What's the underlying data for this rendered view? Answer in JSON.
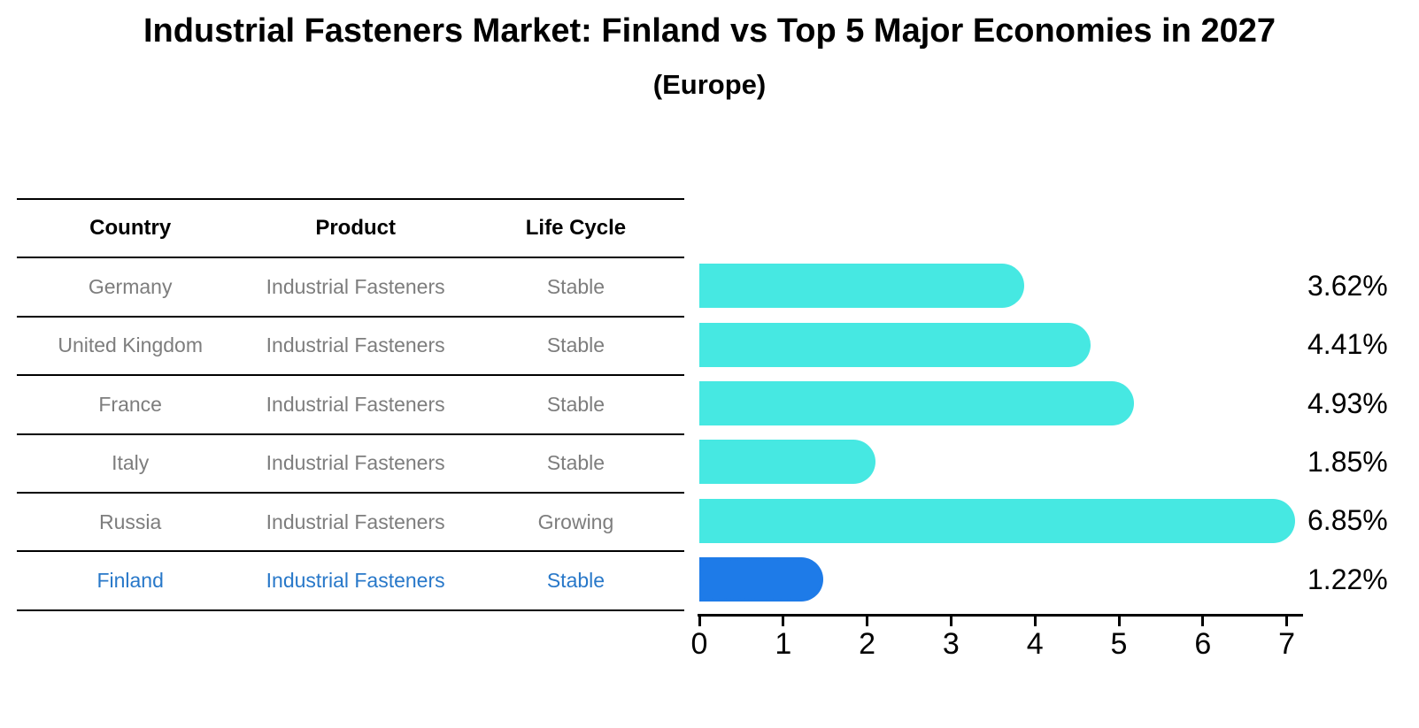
{
  "title": "Industrial Fasteners Market: Finland vs Top 5 Major Economies in 2027",
  "subtitle": "(Europe)",
  "table": {
    "headers": [
      "Country",
      "Product",
      "Life Cycle"
    ],
    "rows": [
      {
        "country": "Germany",
        "product": "Industrial Fasteners",
        "life_cycle": "Stable",
        "highlight": false
      },
      {
        "country": "United Kingdom",
        "product": "Industrial Fasteners",
        "life_cycle": "Stable",
        "highlight": false
      },
      {
        "country": "France",
        "product": "Industrial Fasteners",
        "life_cycle": "Stable",
        "highlight": false
      },
      {
        "country": "Italy",
        "product": "Industrial Fasteners",
        "life_cycle": "Stable",
        "highlight": false
      },
      {
        "country": "Russia",
        "product": "Industrial Fasteners",
        "life_cycle": "Growing",
        "highlight": false
      },
      {
        "country": "Finland",
        "product": "Industrial Fasteners",
        "life_cycle": "Stable",
        "highlight": true
      }
    ]
  },
  "chart_data": {
    "type": "bar",
    "orientation": "horizontal",
    "categories": [
      "Germany",
      "United Kingdom",
      "France",
      "Italy",
      "Russia",
      "Finland"
    ],
    "values": [
      3.62,
      4.41,
      4.93,
      1.85,
      6.85,
      1.22
    ],
    "value_labels": [
      "3.62%",
      "4.41%",
      "4.93%",
      "1.85%",
      "6.85%",
      "1.22%"
    ],
    "highlight_index": 5,
    "x_tick_labels": [
      "0",
      "1",
      "2",
      "3",
      "4",
      "5",
      "6",
      "7"
    ],
    "x_ticks": [
      0,
      1,
      2,
      3,
      4,
      5,
      6,
      7
    ],
    "xlim": [
      0,
      7.2
    ],
    "grid": false,
    "legend": false,
    "xlabel": "",
    "ylabel": "",
    "bar_style": "rounded-right-cap",
    "highlight_bar_style": "dotted-outline"
  },
  "colors": {
    "bar": "#46E8E2",
    "highlight_bar": "#1E7BE8",
    "highlight_text": "#2878C9",
    "table_text": "#7d7d7d",
    "header_text": "#000000",
    "axis": "#000000",
    "background": "#ffffff"
  }
}
